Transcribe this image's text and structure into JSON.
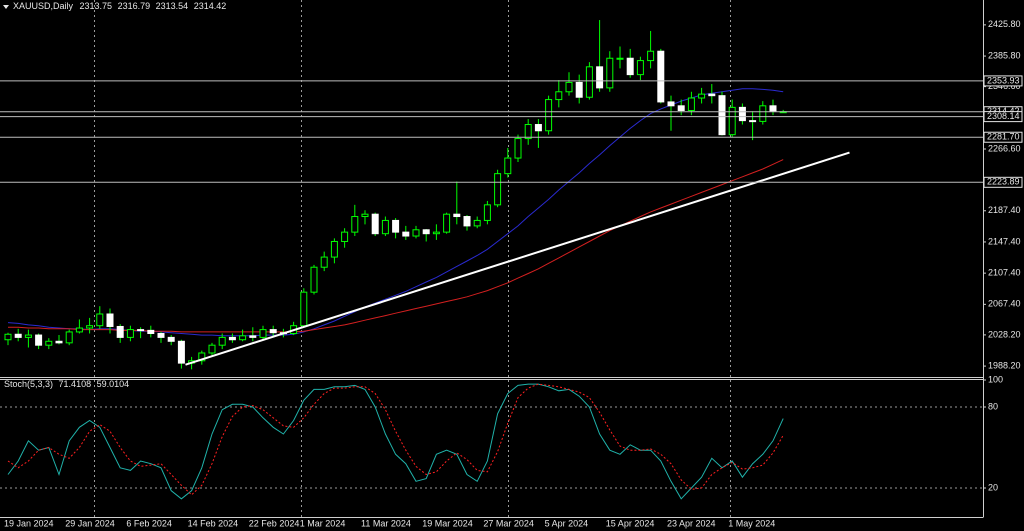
{
  "chart_data": [
    {
      "type": "candlestick",
      "title": "XAUUSD,Daily",
      "background": "#000000",
      "up_color": "#00ff00",
      "down_color": "#ffffff",
      "categories": [
        "19 Jan 2024",
        null,
        null,
        null,
        null,
        null,
        "29 Jan 2024",
        null,
        null,
        null,
        null,
        null,
        "6 Feb 2024",
        null,
        null,
        null,
        null,
        null,
        "14 Feb 2024",
        null,
        null,
        null,
        null,
        null,
        "22 Feb 2024",
        null,
        null,
        null,
        null,
        "1 Mar 2024",
        null,
        null,
        null,
        null,
        null,
        "11 Mar 2024",
        null,
        null,
        null,
        null,
        null,
        "19 Mar 2024",
        null,
        null,
        null,
        null,
        null,
        "27 Mar 2024",
        null,
        null,
        null,
        null,
        null,
        "5 Apr 2024",
        null,
        null,
        null,
        null,
        null,
        "15 Apr 2024",
        null,
        null,
        null,
        null,
        null,
        "23 Apr 2024",
        null,
        null,
        null,
        null,
        null,
        "1 May 2024",
        null,
        null,
        null,
        null,
        null
      ],
      "open": [
        2022,
        2029,
        2025,
        2028,
        2015,
        2020,
        2018,
        2032,
        2037,
        2040,
        2055,
        2039,
        2025,
        2035,
        2034,
        2030,
        2025,
        2020,
        1992,
        1995,
        2005,
        2015,
        2025,
        2022,
        2027,
        2025,
        2035,
        2031,
        2030,
        2040,
        2083,
        2115,
        2128,
        2148,
        2160,
        2180,
        2183,
        2158,
        2175,
        2160,
        2155,
        2163,
        2158,
        2160,
        2183,
        2180,
        2168,
        2175,
        2195,
        2235,
        2255,
        2280,
        2298,
        2290,
        2330,
        2340,
        2352,
        2333,
        2372,
        2345,
        2383,
        2383,
        2362,
        2380,
        2392,
        2327,
        2322,
        2316,
        2332,
        2337,
        2335,
        2285,
        2320,
        2303,
        2302,
        2322,
        2313.75
      ],
      "high": [
        2031,
        2036,
        2035,
        2030,
        2024,
        2028,
        2035,
        2048,
        2050,
        2065,
        2062,
        2042,
        2040,
        2038,
        2040,
        2032,
        2028,
        2022,
        2000,
        2008,
        2018,
        2030,
        2030,
        2035,
        2038,
        2040,
        2040,
        2036,
        2045,
        2088,
        2118,
        2135,
        2152,
        2165,
        2195,
        2188,
        2185,
        2180,
        2178,
        2168,
        2168,
        2164,
        2170,
        2185,
        2225,
        2182,
        2180,
        2200,
        2240,
        2268,
        2285,
        2305,
        2305,
        2335,
        2355,
        2365,
        2362,
        2378,
        2432,
        2392,
        2398,
        2395,
        2385,
        2418,
        2395,
        2335,
        2330,
        2340,
        2345,
        2350,
        2340,
        2330,
        2325,
        2315,
        2328,
        2330,
        2316.79
      ],
      "low": [
        2015,
        2020,
        2012,
        2010,
        2010,
        2016,
        2015,
        2030,
        2030,
        2036,
        2030,
        2018,
        2020,
        2024,
        2025,
        2018,
        2015,
        1985,
        1984,
        1990,
        2002,
        2010,
        2018,
        2020,
        2020,
        2022,
        2025,
        2025,
        2028,
        2038,
        2080,
        2110,
        2120,
        2140,
        2155,
        2170,
        2155,
        2155,
        2152,
        2150,
        2152,
        2148,
        2150,
        2158,
        2170,
        2162,
        2165,
        2170,
        2192,
        2230,
        2250,
        2272,
        2268,
        2285,
        2320,
        2335,
        2325,
        2330,
        2340,
        2340,
        2370,
        2358,
        2355,
        2370,
        2325,
        2290,
        2310,
        2310,
        2325,
        2325,
        2284,
        2282,
        2298,
        2278,
        2298,
        2310,
        2313.54
      ],
      "close": [
        2029,
        2025,
        2028,
        2015,
        2020,
        2018,
        2032,
        2037,
        2040,
        2055,
        2039,
        2025,
        2035,
        2034,
        2030,
        2025,
        2020,
        1992,
        1995,
        2005,
        2015,
        2025,
        2022,
        2027,
        2025,
        2035,
        2031,
        2030,
        2040,
        2083,
        2115,
        2128,
        2148,
        2160,
        2180,
        2183,
        2158,
        2175,
        2160,
        2155,
        2163,
        2158,
        2160,
        2183,
        2180,
        2168,
        2175,
        2195,
        2235,
        2255,
        2280,
        2298,
        2290,
        2330,
        2340,
        2352,
        2333,
        2372,
        2345,
        2383,
        2383,
        2362,
        2380,
        2392,
        2327,
        2322,
        2316,
        2332,
        2337,
        2335,
        2285,
        2320,
        2303,
        2302,
        2322,
        2315,
        2314.42
      ],
      "overlays": [
        {
          "color": "#2a2ad0",
          "values": [
            2044,
            2043,
            2041,
            2040,
            2038,
            2037,
            2036,
            2036,
            2035,
            2036,
            2036,
            2035,
            2034,
            2033,
            2033,
            2032,
            2031,
            2030,
            2029,
            2028,
            2028,
            2027,
            2027,
            2027,
            2027,
            2028,
            2028,
            2028,
            2029,
            2032,
            2036,
            2041,
            2046,
            2052,
            2058,
            2064,
            2069,
            2074,
            2079,
            2084,
            2090,
            2096,
            2102,
            2109,
            2116,
            2123,
            2130,
            2138,
            2148,
            2158,
            2168,
            2180,
            2191,
            2202,
            2214,
            2225,
            2236,
            2248,
            2259,
            2271,
            2282,
            2293,
            2303,
            2312,
            2318,
            2323,
            2328,
            2332,
            2336,
            2338,
            2340,
            2342,
            2344,
            2344,
            2343,
            2342,
            2340
          ]
        },
        {
          "color": "#d42020",
          "values": [
            2038,
            2038,
            2037,
            2037,
            2036,
            2036,
            2036,
            2035,
            2035,
            2035,
            2035,
            2034,
            2034,
            2034,
            2033,
            2033,
            2033,
            2032,
            2032,
            2032,
            2032,
            2032,
            2032,
            2032,
            2032,
            2032,
            2032,
            2032,
            2032,
            2033,
            2035,
            2037,
            2039,
            2041,
            2044,
            2047,
            2050,
            2053,
            2056,
            2059,
            2062,
            2065,
            2068,
            2071,
            2074,
            2077,
            2081,
            2085,
            2090,
            2095,
            2101,
            2107,
            2113,
            2120,
            2127,
            2134,
            2141,
            2148,
            2155,
            2162,
            2168,
            2174,
            2180,
            2186,
            2191,
            2196,
            2201,
            2206,
            2211,
            2216,
            2221,
            2226,
            2231,
            2236,
            2241,
            2247,
            2253
          ]
        }
      ],
      "trendline": {
        "x": [
          17.4,
          82.5
        ],
        "y": [
          1990,
          2262
        ],
        "color": "#ffffff"
      },
      "levels": [
        2353.93,
        2314.42,
        2308.14,
        {
          "value": 2281.7,
          "label": "2281.70"
        },
        2223.89
      ],
      "ylim": [
        1974.2,
        2457.7
      ],
      "yticks": [
        {
          "value": 2425.8,
          "label": "2425.80"
        },
        {
          "value": 2385.8,
          "label": "2385.80"
        },
        {
          "value": 2346.6,
          "label": "2346.60"
        },
        {
          "value": 2266.6,
          "label": "2266.60"
        },
        {
          "value": 2187.4,
          "label": "2187.40"
        },
        {
          "value": 2147.4,
          "label": "2147.40"
        },
        {
          "value": 2107.4,
          "label": "2107.40"
        },
        {
          "value": 2067.4,
          "label": "2067.40"
        },
        {
          "value": 2028.2,
          "label": "2028.20"
        },
        {
          "value": 1988.2,
          "label": "1988.20"
        }
      ]
    },
    {
      "type": "line",
      "title": "Stoch(5,3,3)",
      "series": [
        {
          "color": "#20b2aa",
          "dashed": false,
          "values": [
            30,
            40,
            55,
            48,
            50,
            30,
            55,
            65,
            70,
            65,
            50,
            35,
            33,
            40,
            38,
            35,
            18,
            12,
            18,
            35,
            60,
            78,
            82,
            82,
            80,
            72,
            65,
            60,
            70,
            85,
            93,
            93,
            95,
            95,
            96,
            93,
            80,
            60,
            45,
            38,
            25,
            27,
            45,
            48,
            45,
            30,
            25,
            40,
            75,
            90,
            96,
            97,
            97,
            95,
            92,
            93,
            88,
            80,
            60,
            48,
            45,
            52,
            48,
            48,
            40,
            25,
            12,
            20,
            28,
            42,
            35,
            40,
            28,
            38,
            45,
            55,
            71.4108
          ]
        },
        {
          "color": "#ff2020",
          "dashed": true,
          "values": [
            40,
            35,
            40,
            48,
            50,
            45,
            42,
            50,
            62,
            67,
            62,
            50,
            40,
            36,
            37,
            38,
            30,
            22,
            15,
            22,
            38,
            58,
            73,
            80,
            81,
            78,
            72,
            66,
            65,
            72,
            82,
            90,
            94,
            94,
            95,
            95,
            90,
            78,
            62,
            48,
            36,
            30,
            32,
            40,
            46,
            41,
            33,
            32,
            47,
            68,
            87,
            94,
            97,
            96,
            95,
            93,
            91,
            87,
            76,
            63,
            51,
            48,
            48,
            49,
            45,
            38,
            26,
            19,
            20,
            30,
            35,
            39,
            34,
            35,
            37,
            46,
            59.0104
          ]
        }
      ],
      "levels": [
        20,
        80
      ],
      "ylim": [
        0,
        100
      ],
      "yticks": [
        20,
        80,
        100
      ]
    }
  ]
}
